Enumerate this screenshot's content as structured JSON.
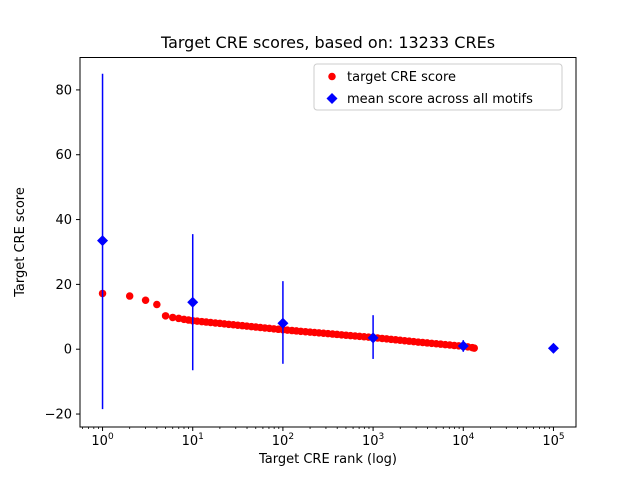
{
  "figure": {
    "background": "#ffffff"
  },
  "chart_data": {
    "type": "scatter",
    "title": "Target CRE scores, based on: 13233 CREs",
    "xlabel": "Target CRE rank (log)",
    "ylabel": "Target CRE score",
    "x_scale": "log",
    "x_log_range": [
      -0.25,
      5.25
    ],
    "ylim": [
      -24,
      90
    ],
    "x_tick_decades": [
      0,
      1,
      2,
      3,
      4,
      5
    ],
    "y_ticks": [
      -20,
      0,
      20,
      40,
      60,
      80
    ],
    "grid": false,
    "legend_position": "upper right",
    "series": [
      {
        "name": "target CRE score",
        "marker": "circle",
        "color": "#ff0000",
        "points": [
          [
            1,
            17.2
          ],
          [
            2,
            16.4
          ],
          [
            3,
            15.1
          ],
          [
            4,
            13.8
          ],
          [
            5,
            10.3
          ],
          [
            6,
            9.8
          ],
          [
            7,
            9.5
          ],
          [
            8,
            9.2
          ],
          [
            9,
            9.0
          ],
          [
            10,
            8.8
          ],
          [
            11.2,
            8.66
          ],
          [
            12.6,
            8.52
          ],
          [
            14.1,
            8.38
          ],
          [
            15.8,
            8.24
          ],
          [
            17.8,
            8.1
          ],
          [
            20,
            7.96
          ],
          [
            22.4,
            7.82
          ],
          [
            25.1,
            7.68
          ],
          [
            28.2,
            7.54
          ],
          [
            31.6,
            7.4
          ],
          [
            35.5,
            7.26
          ],
          [
            39.8,
            7.12
          ],
          [
            44.7,
            6.98
          ],
          [
            50.1,
            6.84
          ],
          [
            56.2,
            6.7
          ],
          [
            63.1,
            6.56
          ],
          [
            70.8,
            6.42
          ],
          [
            79.4,
            6.28
          ],
          [
            89.1,
            6.14
          ],
          [
            100,
            6.0
          ],
          [
            112,
            5.88
          ],
          [
            126,
            5.76
          ],
          [
            141,
            5.64
          ],
          [
            158,
            5.52
          ],
          [
            178,
            5.4
          ],
          [
            200,
            5.28
          ],
          [
            224,
            5.16
          ],
          [
            251,
            5.04
          ],
          [
            282,
            4.92
          ],
          [
            316,
            4.8
          ],
          [
            355,
            4.68
          ],
          [
            398,
            4.56
          ],
          [
            447,
            4.44
          ],
          [
            501,
            4.32
          ],
          [
            562,
            4.2
          ],
          [
            631,
            4.08
          ],
          [
            708,
            3.96
          ],
          [
            794,
            3.84
          ],
          [
            891,
            3.72
          ],
          [
            1000,
            3.6
          ],
          [
            1122,
            3.46
          ],
          [
            1259,
            3.32
          ],
          [
            1413,
            3.18
          ],
          [
            1585,
            3.04
          ],
          [
            1778,
            2.9
          ],
          [
            1995,
            2.76
          ],
          [
            2239,
            2.62
          ],
          [
            2512,
            2.48
          ],
          [
            2818,
            2.34
          ],
          [
            3162,
            2.2
          ],
          [
            3548,
            2.07
          ],
          [
            3981,
            1.94
          ],
          [
            4467,
            1.81
          ],
          [
            5012,
            1.68
          ],
          [
            5623,
            1.55
          ],
          [
            6310,
            1.42
          ],
          [
            7079,
            1.29
          ],
          [
            7943,
            1.16
          ],
          [
            8913,
            1.03
          ],
          [
            10000,
            0.9
          ],
          [
            11220,
            0.72
          ],
          [
            12589,
            0.5
          ],
          [
            13233,
            0.35
          ]
        ]
      },
      {
        "name": "mean score across all motifs",
        "marker": "diamond",
        "color": "#0000ff",
        "points": [
          {
            "x": 1,
            "y": 33.5,
            "lo": -18.5,
            "hi": 85.0
          },
          {
            "x": 10,
            "y": 14.5,
            "lo": -6.5,
            "hi": 35.5
          },
          {
            "x": 100,
            "y": 8.0,
            "lo": -4.5,
            "hi": 21.0
          },
          {
            "x": 1000,
            "y": 3.5,
            "lo": -3.0,
            "hi": 10.5
          },
          {
            "x": 10000,
            "y": 1.0,
            "lo": -0.8,
            "hi": 2.8
          },
          {
            "x": 100000,
            "y": 0.3,
            "lo": 0.3,
            "hi": 0.3
          }
        ]
      }
    ]
  }
}
